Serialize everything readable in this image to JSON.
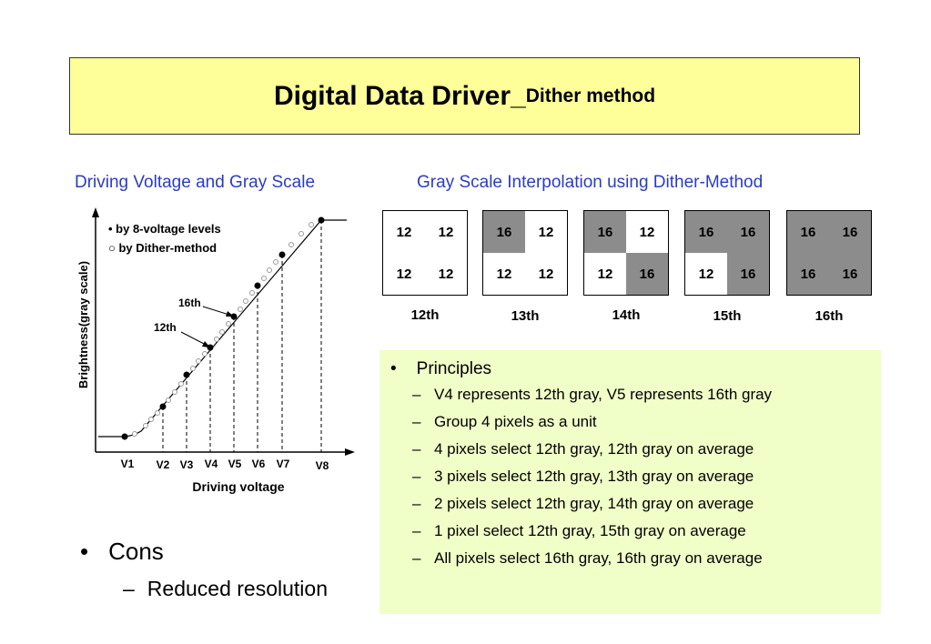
{
  "title": {
    "main": "Digital Data Driver_",
    "sub": "Dither method"
  },
  "left_heading": "Driving Voltage and Gray Scale",
  "right_heading": "Gray Scale Interpolation using  Dither-Method",
  "chart": {
    "ylabel": "Brightness(gray scale)",
    "xlabel": "Driving voltage",
    "legend": [
      "• by 8-voltage levels",
      "○ by Dither-method"
    ],
    "annotations": [
      "16th",
      "12th"
    ],
    "x_ticks": [
      "V1",
      "V2",
      "V3",
      "V4",
      "V5",
      "V6",
      "V7",
      "V8"
    ]
  },
  "dither_grids": [
    {
      "label": "12th",
      "cells": [
        {
          "v": "12",
          "gray": false
        },
        {
          "v": "12",
          "gray": false
        },
        {
          "v": "12",
          "gray": false
        },
        {
          "v": "12",
          "gray": false
        }
      ]
    },
    {
      "label": "13th",
      "cells": [
        {
          "v": "16",
          "gray": true
        },
        {
          "v": "12",
          "gray": false
        },
        {
          "v": "12",
          "gray": false
        },
        {
          "v": "12",
          "gray": false
        }
      ]
    },
    {
      "label": "14th",
      "cells": [
        {
          "v": "16",
          "gray": true
        },
        {
          "v": "12",
          "gray": false
        },
        {
          "v": "12",
          "gray": false
        },
        {
          "v": "16",
          "gray": true
        }
      ]
    },
    {
      "label": "15th",
      "cells": [
        {
          "v": "16",
          "gray": true
        },
        {
          "v": "16",
          "gray": true
        },
        {
          "v": "12",
          "gray": false
        },
        {
          "v": "16",
          "gray": true
        }
      ]
    },
    {
      "label": "16th",
      "cells": [
        {
          "v": "16",
          "gray": true
        },
        {
          "v": "16",
          "gray": true
        },
        {
          "v": "16",
          "gray": true
        },
        {
          "v": "16",
          "gray": true
        }
      ]
    }
  ],
  "principles": {
    "bullet": "•",
    "heading": "Principles",
    "dash": "–",
    "items": [
      "V4 represents 12th gray,  V5 represents 16th gray",
      "Group 4 pixels as a unit",
      "4 pixels select 12th gray, 12th gray on average",
      "3 pixels select 12th gray, 13th gray on average",
      "2 pixels select 12th gray, 14th gray on average",
      "1 pixel select 12th gray, 15th gray on average",
      "All pixels select 16th gray, 16th gray on average"
    ]
  },
  "cons": {
    "bullet": "•",
    "heading": "Cons",
    "dash": "–",
    "item": "Reduced resolution"
  }
}
